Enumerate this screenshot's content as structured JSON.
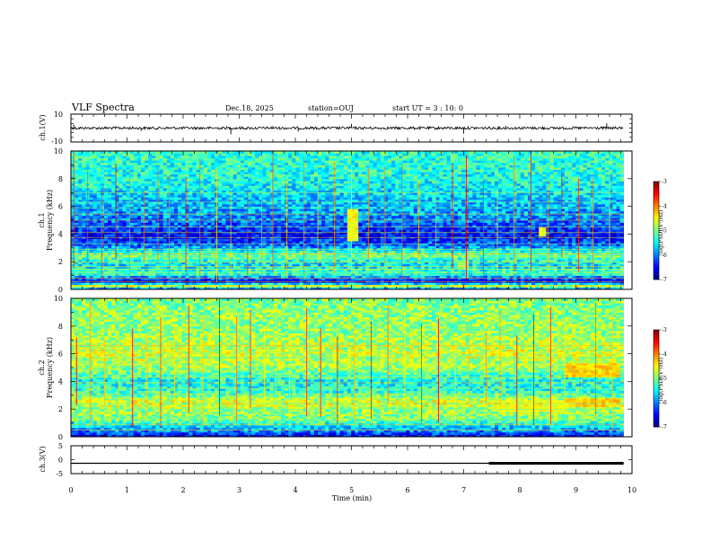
{
  "header": {
    "title": "VLF Spectra",
    "date": "Dec.18, 2025",
    "station": "station=OUJ",
    "start_time": "start  UT =   3 : 10: 0"
  },
  "chart_data": [
    {
      "type": "line",
      "id": "ch1_waveform",
      "ylabel": "ch.1(V)",
      "ylim": [
        -10,
        10
      ],
      "ytick_labels": [
        "10",
        "-10"
      ],
      "xlim": [
        0,
        10
      ],
      "baseline": 0,
      "spikes": [
        {
          "x": 0.05,
          "y": 2.5
        },
        {
          "x": 1.25,
          "y": -2.0
        },
        {
          "x": 2.85,
          "y": -4.5
        },
        {
          "x": 3.6,
          "y": 1.5
        },
        {
          "x": 4.05,
          "y": -2.5
        },
        {
          "x": 5.0,
          "y": 3.0
        },
        {
          "x": 7.0,
          "y": -4.0
        },
        {
          "x": 7.75,
          "y": 1.5
        },
        {
          "x": 9.55,
          "y": 3.5
        }
      ]
    },
    {
      "type": "heatmap",
      "id": "ch1_spectrogram",
      "ylabel_lines": [
        "ch.1",
        "Frequency  (kHz)"
      ],
      "ylim": [
        0,
        10
      ],
      "yticks": [
        0,
        2,
        4,
        6,
        8,
        10
      ],
      "ytick_labels": [
        "0",
        "2",
        "4",
        "6",
        "8",
        "10"
      ],
      "xlim": [
        0,
        10
      ],
      "color_range": [
        -7,
        -3
      ],
      "colorbar_ticks": [
        -3,
        -4,
        -5,
        -6,
        -7
      ],
      "colorbar_tick_labels": [
        "-3",
        "-4",
        "-5",
        "-6",
        "-7"
      ],
      "colorbar_label": "log(PSD)(V²/Hz)",
      "band_profile": [
        {
          "f": 0.0,
          "v": -6.6
        },
        {
          "f": 0.2,
          "v": -4.5
        },
        {
          "f": 0.6,
          "v": -6.6
        },
        {
          "f": 1.2,
          "v": -5.2
        },
        {
          "f": 1.8,
          "v": -5.7
        },
        {
          "f": 2.5,
          "v": -5.0
        },
        {
          "f": 3.2,
          "v": -6.1
        },
        {
          "f": 4.0,
          "v": -6.5
        },
        {
          "f": 5.0,
          "v": -6.0
        },
        {
          "f": 6.5,
          "v": -5.7
        },
        {
          "f": 8.0,
          "v": -5.4
        },
        {
          "f": 10.0,
          "v": -5.3
        }
      ],
      "tone_lines_khz": [
        0.3,
        0.55,
        0.8,
        1.05,
        1.2,
        1.45,
        1.65,
        1.95,
        2.3,
        2.55,
        2.9,
        3.3,
        3.75,
        4.1,
        4.5,
        5.0,
        5.45,
        5.9,
        6.3,
        7.0
      ],
      "sferic_times_min": [
        0.05,
        0.3,
        0.55,
        0.8,
        1.05,
        1.3,
        1.55,
        1.75,
        2.05,
        2.3,
        2.6,
        2.85,
        3.15,
        3.4,
        3.6,
        3.85,
        4.15,
        4.4,
        4.7,
        5.0,
        5.3,
        5.6,
        5.9,
        6.2,
        6.5,
        6.8,
        7.05,
        7.35,
        7.6,
        7.9,
        8.2,
        8.5,
        8.75,
        9.05,
        9.3,
        9.6
      ],
      "enhanced_regions": [
        {
          "t0": 4.95,
          "t1": 5.1,
          "f0": 3.5,
          "f1": 5.8,
          "v": -4.5
        },
        {
          "t0": 8.35,
          "t1": 8.5,
          "f0": 3.8,
          "f1": 4.5,
          "v": -4.5
        },
        {
          "t0": 6.9,
          "t1": 7.1,
          "f0": 1.5,
          "f1": 2.2,
          "v": -5.0
        }
      ]
    },
    {
      "type": "heatmap",
      "id": "ch2_spectrogram",
      "ylabel_lines": [
        "ch.2",
        "Frequency  (kHz)"
      ],
      "ylim": [
        0,
        10
      ],
      "yticks": [
        0,
        2,
        4,
        6,
        8,
        10
      ],
      "ytick_labels": [
        "0",
        "2",
        "4",
        "6",
        "8",
        "10"
      ],
      "xlim": [
        0,
        10
      ],
      "color_range": [
        -7,
        -3
      ],
      "colorbar_ticks": [
        -3,
        -4,
        -5,
        -6,
        -7
      ],
      "colorbar_tick_labels": [
        "-3",
        "-4",
        "-5",
        "-6",
        "-7"
      ],
      "colorbar_label": "log(PSD)(V²/Hz)",
      "band_profile": [
        {
          "f": 0.0,
          "v": -6.5
        },
        {
          "f": 0.6,
          "v": -5.8
        },
        {
          "f": 1.3,
          "v": -5.0
        },
        {
          "f": 2.0,
          "v": -4.9
        },
        {
          "f": 2.5,
          "v": -4.6
        },
        {
          "f": 3.2,
          "v": -5.3
        },
        {
          "f": 4.0,
          "v": -5.5
        },
        {
          "f": 5.0,
          "v": -4.9
        },
        {
          "f": 6.0,
          "v": -4.7
        },
        {
          "f": 7.5,
          "v": -4.9
        },
        {
          "f": 10.0,
          "v": -5.0
        }
      ],
      "tone_lines_khz": [
        0.5,
        0.9,
        1.3,
        1.65,
        2.0,
        2.4,
        2.75,
        3.1,
        3.5,
        3.9,
        4.3,
        4.8,
        5.2,
        5.7,
        6.1,
        6.6,
        7.2,
        7.8
      ],
      "sferic_times_min": [
        0.1,
        0.35,
        0.6,
        0.85,
        1.1,
        1.35,
        1.6,
        1.85,
        2.1,
        2.35,
        2.65,
        2.95,
        3.2,
        3.45,
        3.65,
        3.9,
        4.2,
        4.45,
        4.75,
        5.05,
        5.35,
        5.65,
        5.95,
        6.25,
        6.55,
        6.85,
        7.1,
        7.4,
        7.65,
        7.95,
        8.25,
        8.55,
        8.8,
        9.1,
        9.35,
        9.65
      ],
      "enhanced_regions": [
        {
          "t0": 8.8,
          "t1": 9.8,
          "f0": 4.3,
          "f1": 5.3,
          "v": -4.3
        },
        {
          "t0": 8.8,
          "t1": 9.8,
          "f0": 2.2,
          "f1": 2.9,
          "v": -4.3
        },
        {
          "t0": 7.5,
          "t1": 8.8,
          "f0": 1.9,
          "f1": 2.7,
          "v": -4.6
        }
      ]
    },
    {
      "type": "line",
      "id": "ch3_signal",
      "ylabel": "ch.3(V)",
      "ylim": [
        -5,
        5
      ],
      "yticks": [
        5,
        0,
        -5
      ],
      "ytick_labels": [
        "5",
        "0",
        "-5"
      ],
      "xlim": [
        0,
        10
      ],
      "level": -1.3,
      "thick_segment": {
        "x0": 7.45,
        "x1": 9.85
      }
    }
  ],
  "x_axis": {
    "label": "Time  (min)",
    "ticks": [
      0,
      1,
      2,
      3,
      4,
      5,
      6,
      7,
      8,
      9,
      10
    ],
    "tick_labels": [
      "0",
      "1",
      "2",
      "3",
      "4",
      "5",
      "6",
      "7",
      "8",
      "9",
      "10"
    ],
    "data_end": 9.85
  }
}
